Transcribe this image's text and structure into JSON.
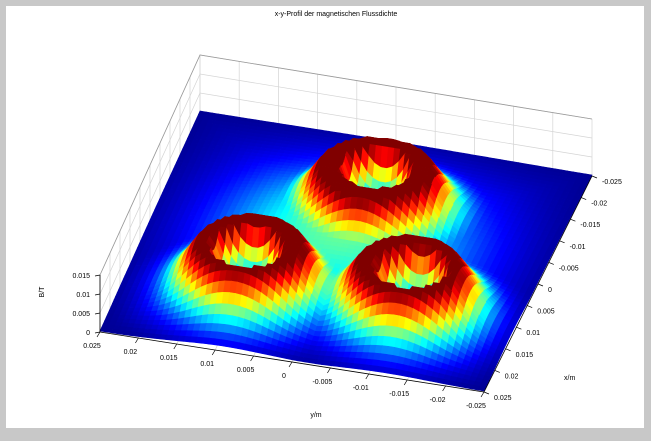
{
  "window": {
    "title": "x-y-Profil der magnetischen Flussdichte"
  },
  "chart_data": {
    "type": "surface",
    "title": "x-y-Profil der magnetischen Flussdichte",
    "xlabel": "x/m",
    "ylabel": "y/m",
    "zlabel": "B/T",
    "xlim": [
      -0.025,
      0.025
    ],
    "ylim": [
      -0.025,
      0.025
    ],
    "zlim": [
      0,
      0.015
    ],
    "x_ticks": [
      "0.025",
      "0.02",
      "0.015",
      "0.01",
      "0.005",
      "0",
      "-0.005",
      "-0.01",
      "-0.015",
      "-0.02",
      "-0.025"
    ],
    "y_ticks": [
      "0.025",
      "0.02",
      "0.015",
      "0.01",
      "0.005",
      "0",
      "-0.005",
      "-0.01",
      "-0.015",
      "-0.02",
      "-0.025"
    ],
    "z_ticks": [
      "0",
      "0.005",
      "0.01",
      "0.015"
    ],
    "grid": true,
    "colormap": "jet",
    "poles": [
      {
        "x": 0.013,
        "y": 0.009,
        "peak": 0.0135,
        "inner": 0.003
      },
      {
        "x": -0.008,
        "y": -0.002,
        "peak": 0.0135,
        "inner": 0.003
      },
      {
        "x": 0.012,
        "y": -0.012,
        "peak": 0.0135,
        "inner": 0.003
      }
    ],
    "background_level": 0.006,
    "edge_level": 0.0005
  }
}
